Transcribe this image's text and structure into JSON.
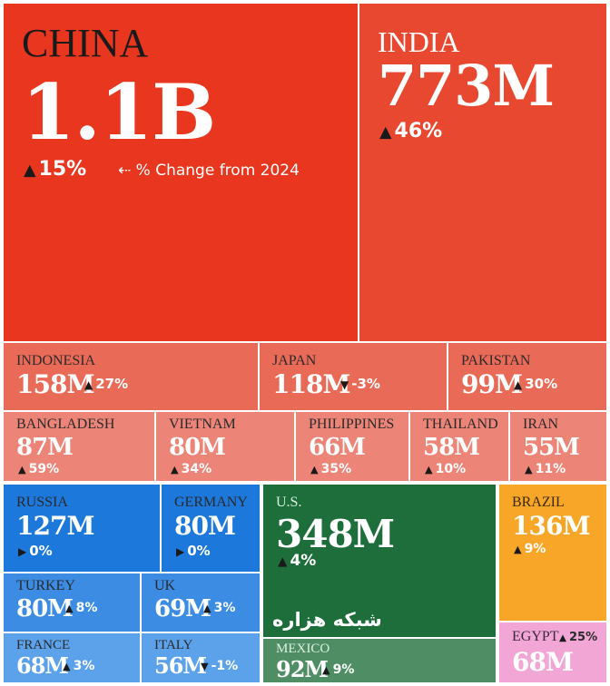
{
  "chart_data": {
    "type": "treemap",
    "legend_note": "% Change from 2024",
    "watermark": "شبکه هزاره",
    "items": [
      {
        "name": "CHINA",
        "value": "1.1B",
        "change": "15%",
        "direction": "up",
        "color": "#e8361f"
      },
      {
        "name": "INDIA",
        "value": "773M",
        "change": "46%",
        "direction": "up",
        "color": "#e84830"
      },
      {
        "name": "INDONESIA",
        "value": "158M",
        "change": "27%",
        "direction": "up",
        "color": "#ea6a58"
      },
      {
        "name": "JAPAN",
        "value": "118M",
        "change": "-3%",
        "direction": "down",
        "color": "#ea6a58"
      },
      {
        "name": "PAKISTAN",
        "value": "99M",
        "change": "30%",
        "direction": "up",
        "color": "#ea6a58"
      },
      {
        "name": "BANGLADESH",
        "value": "87M",
        "change": "59%",
        "direction": "up",
        "color": "#ec8478"
      },
      {
        "name": "VIETNAM",
        "value": "80M",
        "change": "34%",
        "direction": "up",
        "color": "#ec8478"
      },
      {
        "name": "PHILIPPINES",
        "value": "66M",
        "change": "35%",
        "direction": "up",
        "color": "#ec8478"
      },
      {
        "name": "THAILAND",
        "value": "58M",
        "change": "10%",
        "direction": "up",
        "color": "#ec8478"
      },
      {
        "name": "IRAN",
        "value": "55M",
        "change": "11%",
        "direction": "up",
        "color": "#ec8478"
      },
      {
        "name": "RUSSIA",
        "value": "127M",
        "change": "0%",
        "direction": "flat",
        "color": "#1d78dc"
      },
      {
        "name": "GERMANY",
        "value": "80M",
        "change": "0%",
        "direction": "flat",
        "color": "#1d78dc"
      },
      {
        "name": "TURKEY",
        "value": "80M",
        "change": "8%",
        "direction": "up",
        "color": "#3c8ce4"
      },
      {
        "name": "UK",
        "value": "69M",
        "change": "3%",
        "direction": "up",
        "color": "#3c8ce4"
      },
      {
        "name": "FRANCE",
        "value": "68M",
        "change": "3%",
        "direction": "up",
        "color": "#5ca2ea"
      },
      {
        "name": "ITALY",
        "value": "56M",
        "change": "-1%",
        "direction": "down",
        "color": "#5ca2ea"
      },
      {
        "name": "U.S.",
        "value": "348M",
        "change": "4%",
        "direction": "up",
        "color": "#1e6e3c"
      },
      {
        "name": "MEXICO",
        "value": "92M",
        "change": "9%",
        "direction": "up",
        "color": "#4f8e64"
      },
      {
        "name": "BRAZIL",
        "value": "136M",
        "change": "9%",
        "direction": "up",
        "color": "#f7a627"
      },
      {
        "name": "EGYPT",
        "value": "68M",
        "change": "25%",
        "direction": "up",
        "color": "#f2a6d6"
      }
    ]
  }
}
